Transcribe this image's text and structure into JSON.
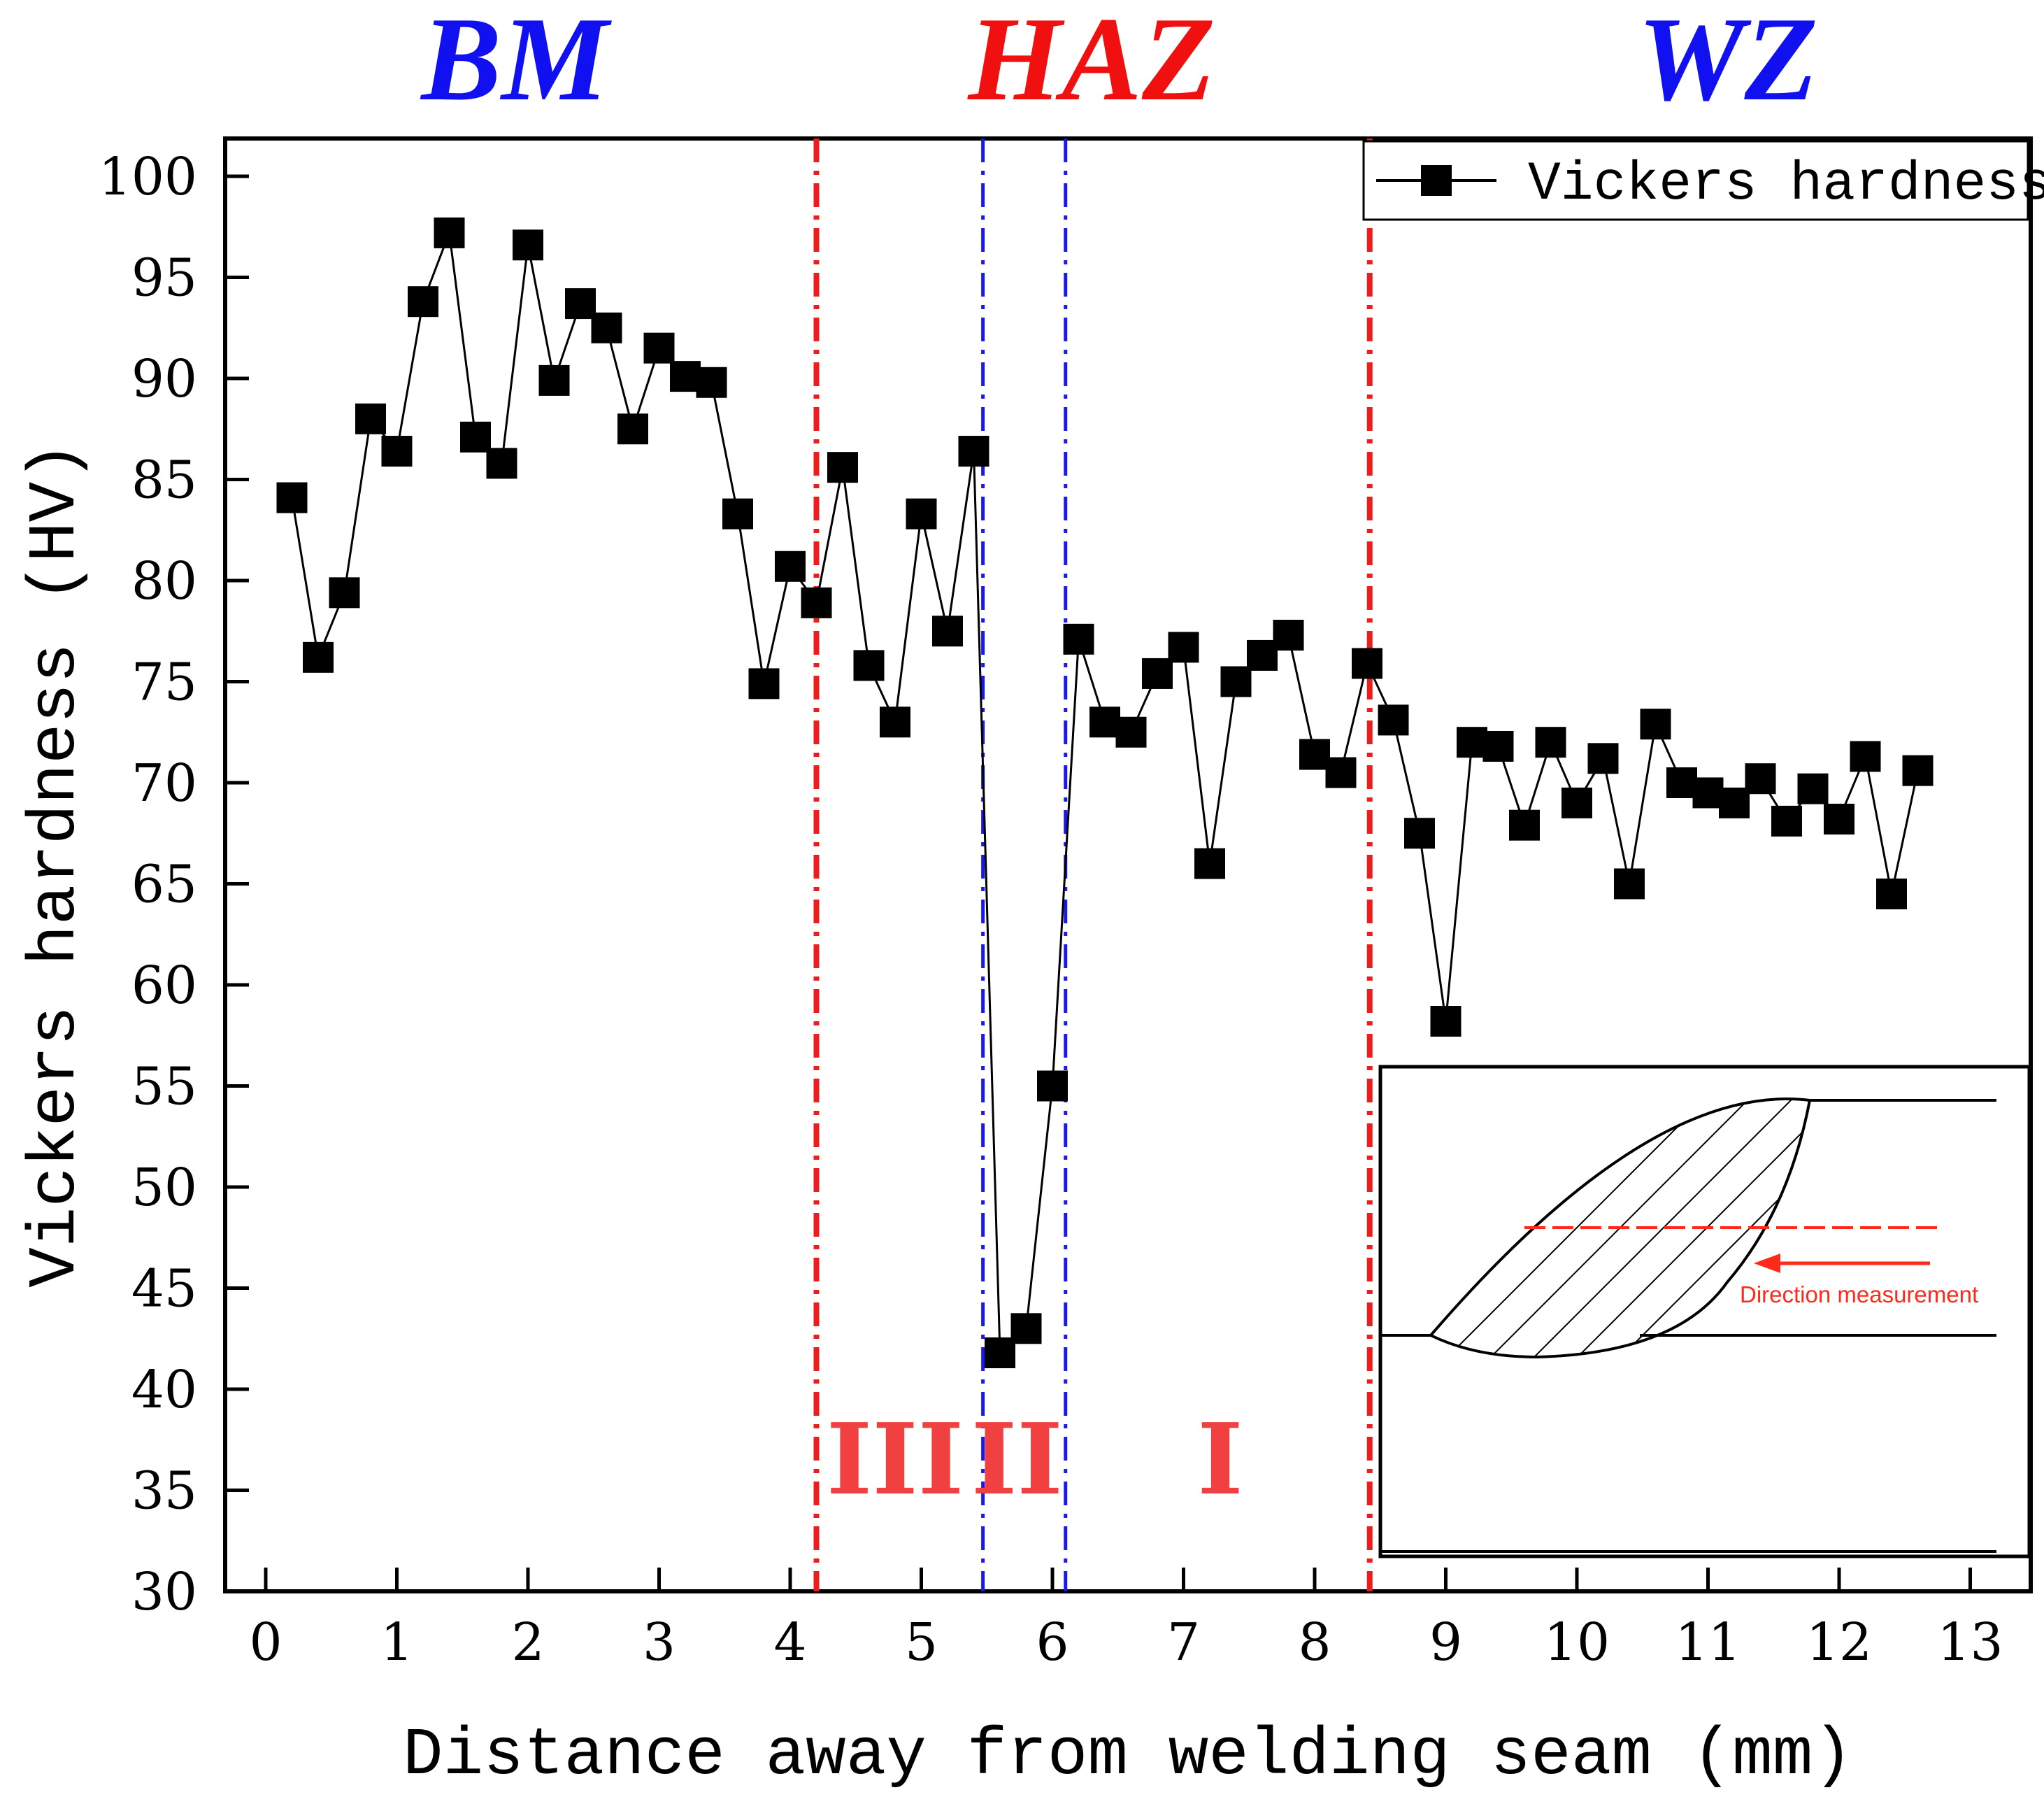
{
  "chart_data": {
    "type": "line",
    "xlabel": "Distance away from welding seam (mm)",
    "ylabel": "Vickers hardness (HV)",
    "xlim": [
      -0.3,
      13.5
    ],
    "ylim": [
      30,
      102
    ],
    "xticks": [
      0,
      1,
      2,
      3,
      4,
      5,
      6,
      7,
      8,
      9,
      10,
      11,
      12,
      13
    ],
    "yticks": [
      30,
      35,
      40,
      45,
      50,
      55,
      60,
      65,
      70,
      75,
      80,
      85,
      90,
      95,
      100
    ],
    "legend": {
      "label": "Vickers hardness",
      "position": "top-right"
    },
    "zone_labels": [
      {
        "text": "BM",
        "color": "#1010f0",
        "center_x": 1.9
      },
      {
        "text": "HAZ",
        "color": "#f01010",
        "center_x": 6.3
      },
      {
        "text": "WZ",
        "color": "#1010f0",
        "center_x": 11.15
      }
    ],
    "boundaries": [
      {
        "x": 4.2,
        "color": "#ee1c1c",
        "style": "dash-dot"
      },
      {
        "x": 5.47,
        "color": "#1a1ae6",
        "style": "dash-dot"
      },
      {
        "x": 6.1,
        "color": "#1a1ae6",
        "style": "dash-dot"
      },
      {
        "x": 8.42,
        "color": "#ee1c1c",
        "style": "dash-dot"
      }
    ],
    "region_labels": [
      {
        "text": "III",
        "x": 4.8,
        "y": 36.5
      },
      {
        "text": "II",
        "x": 5.73,
        "y": 36.5
      },
      {
        "text": "I",
        "x": 7.28,
        "y": 36.5
      }
    ],
    "series": [
      {
        "name": "Vickers hardness",
        "color": "#000000",
        "x": [
          0.2,
          0.4,
          0.6,
          0.8,
          1.0,
          1.2,
          1.4,
          1.6,
          1.8,
          2.0,
          2.2,
          2.4,
          2.6,
          2.8,
          3.0,
          3.2,
          3.4,
          3.6,
          3.8,
          4.0,
          4.2,
          4.4,
          4.6,
          4.8,
          5.0,
          5.2,
          5.4,
          5.6,
          5.8,
          6.0,
          6.2,
          6.4,
          6.6,
          6.8,
          7.0,
          7.2,
          7.4,
          7.6,
          7.8,
          8.0,
          8.2,
          8.4,
          8.6,
          8.8,
          9.0,
          9.2,
          9.4,
          9.6,
          9.8,
          10.0,
          10.2,
          10.4,
          10.6,
          10.8,
          11.0,
          11.2,
          11.4,
          11.6,
          11.8,
          12.0,
          12.2,
          12.4,
          12.6
        ],
        "values": [
          84.1,
          76.2,
          79.4,
          88.0,
          86.4,
          93.8,
          97.2,
          87.1,
          85.8,
          96.6,
          89.9,
          93.7,
          92.5,
          87.5,
          91.5,
          90.1,
          89.8,
          83.3,
          74.9,
          80.7,
          78.9,
          85.6,
          75.8,
          73.0,
          83.3,
          77.5,
          86.4,
          41.8,
          43.0,
          55.0,
          77.1,
          73.0,
          72.5,
          75.4,
          76.7,
          66.0,
          75.0,
          76.3,
          77.3,
          71.4,
          70.5,
          75.9,
          73.1,
          67.5,
          58.2,
          72.0,
          71.8,
          67.9,
          72.0,
          69.0,
          71.2,
          65.0,
          72.9,
          70.0,
          69.5,
          69.0,
          70.2,
          68.1,
          69.7,
          68.2,
          71.3,
          64.5,
          70.6
        ]
      }
    ]
  },
  "inset": {
    "label": "Direction measurement",
    "arrow_color": "#ff2a1a"
  }
}
